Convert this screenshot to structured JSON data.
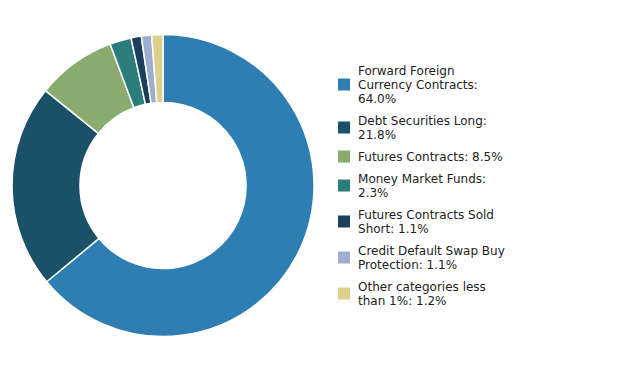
{
  "chart_data": {
    "type": "donut",
    "categories": [
      "Forward Foreign\nCurrency Contracts:\n64.0%",
      "Debt Securities Long:\n21.8%",
      "Futures Contracts: 8.5%",
      "Money Market Funds:\n2.3%",
      "Futures Contracts Sold\nShort: 1.1%",
      "Credit Default Swap Buy\nProtection: 1.1%",
      "Other categories less\nthan 1%: 1.2%"
    ],
    "values": [
      64.0,
      21.8,
      8.5,
      2.3,
      1.1,
      1.1,
      1.2
    ],
    "colors": [
      "#2e7eb3",
      "#1a5068",
      "#8aab6e",
      "#2a7d7b",
      "#1c3f5e",
      "#9daece",
      "#ddd08a"
    ],
    "legend": "right"
  }
}
